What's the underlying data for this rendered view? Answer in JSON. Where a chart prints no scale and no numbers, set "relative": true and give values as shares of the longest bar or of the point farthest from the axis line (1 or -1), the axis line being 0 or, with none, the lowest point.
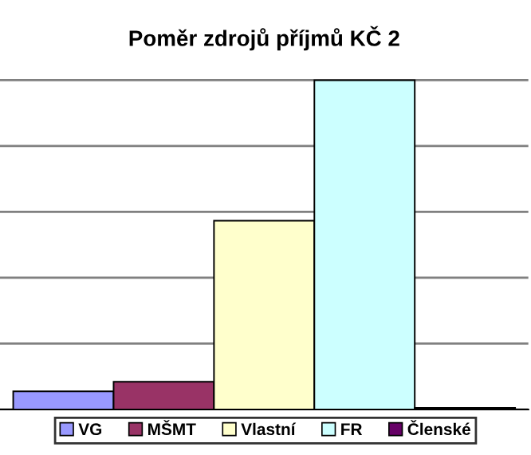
{
  "chart_data": {
    "type": "bar",
    "title": "Poměr zdrojů příjmů KČ 2",
    "categories": [
      null
    ],
    "relative": true,
    "grid": "y",
    "legend": "bottom",
    "series": [
      {
        "name": "VG",
        "color": "#9999ff",
        "values": [
          0.055
        ]
      },
      {
        "name": "MŠMT",
        "color": "#993366",
        "values": [
          0.084
        ]
      },
      {
        "name": "Vlastní",
        "color": "#ffffcc",
        "values": [
          0.573
        ]
      },
      {
        "name": "FR",
        "color": "#ccffff",
        "values": [
          1
        ]
      },
      {
        "name": "Členské",
        "color": "#660066",
        "values": [
          0.005
        ]
      }
    ]
  }
}
